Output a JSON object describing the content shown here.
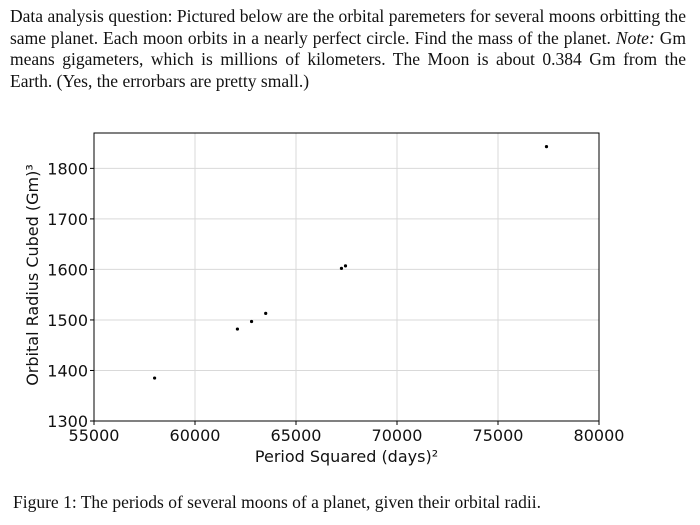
{
  "question": {
    "part1": "Data analysis question: Pictured below are the orbital paremeters for several moons orbitting the same planet. Each moon orbits in a nearly perfect circle. Find the mass of the planet.",
    "note_label": "Note:",
    "part2": "Gm means gigameters, which is millions of kilometers. The Moon is about 0.384 Gm from the Earth. (Yes, the errorbars are pretty small.)"
  },
  "caption": "Figure 1: The periods of several moons of a planet, given their orbital radii.",
  "chart_data": {
    "type": "scatter",
    "xlabel": "Period Squared (days)²",
    "ylabel": "Orbital Radius Cubed (Gm)³",
    "xlim": [
      55000,
      80000
    ],
    "ylim": [
      1300,
      1870
    ],
    "x_ticks": [
      55000,
      60000,
      65000,
      70000,
      75000,
      80000
    ],
    "y_ticks": [
      1300,
      1400,
      1500,
      1600,
      1700,
      1800
    ],
    "grid": true,
    "points": [
      {
        "x": 58000,
        "y": 1385
      },
      {
        "x": 62100,
        "y": 1482
      },
      {
        "x": 62800,
        "y": 1497
      },
      {
        "x": 63500,
        "y": 1513
      },
      {
        "x": 67250,
        "y": 1602
      },
      {
        "x": 67450,
        "y": 1607
      },
      {
        "x": 77400,
        "y": 1843
      }
    ],
    "marker_color": "#000000",
    "grid_color": "#d9d9d9"
  }
}
